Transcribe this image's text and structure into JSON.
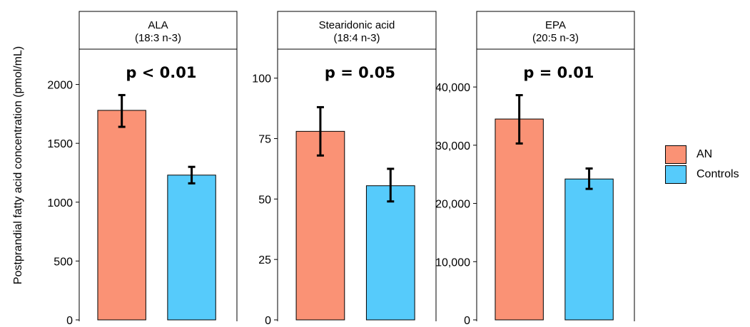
{
  "chart_data": {
    "type": "bar",
    "ylabel": "Postprandial fatty acid concentration (pmol/mL)",
    "legend": {
      "placement": "right",
      "entries": [
        {
          "name": "AN",
          "color": "#FA9275"
        },
        {
          "name": "Controls",
          "color": "#56CBFB"
        }
      ]
    },
    "panels": [
      {
        "title": "ALA",
        "subtitle": "(18:3 n-3)",
        "annotation": "p < 0.01",
        "ylim": [
          0,
          2300
        ],
        "yticks": [
          0,
          500,
          1000,
          1500,
          2000
        ],
        "ytick_labels": [
          "0",
          "500",
          "1000",
          "1500",
          "2000"
        ],
        "categories": [
          "AN",
          "Controls"
        ],
        "values": [
          1780,
          1230
        ],
        "error": [
          [
            1640,
            1910
          ],
          [
            1160,
            1300
          ]
        ]
      },
      {
        "title": "Stearidonic acid",
        "subtitle": "(18:4 n-3)",
        "annotation": "p = 0.05",
        "ylim": [
          0,
          112
        ],
        "yticks": [
          0,
          25,
          50,
          75,
          100
        ],
        "ytick_labels": [
          "0",
          "25",
          "50",
          "75",
          "100"
        ],
        "categories": [
          "AN",
          "Controls"
        ],
        "values": [
          78,
          55.5
        ],
        "error": [
          [
            68,
            88
          ],
          [
            49,
            62.5
          ]
        ]
      },
      {
        "title": "EPA",
        "subtitle": "(20:5 n-3)",
        "annotation": "p = 0.01",
        "ylim": [
          0,
          46500
        ],
        "yticks": [
          0,
          10000,
          20000,
          30000,
          40000
        ],
        "ytick_labels": [
          "0",
          "10,000",
          "20,000",
          "30,000",
          "40,000"
        ],
        "categories": [
          "AN",
          "Controls"
        ],
        "values": [
          34500,
          24200
        ],
        "error": [
          [
            30300,
            38600
          ],
          [
            22500,
            26000
          ]
        ]
      }
    ]
  }
}
